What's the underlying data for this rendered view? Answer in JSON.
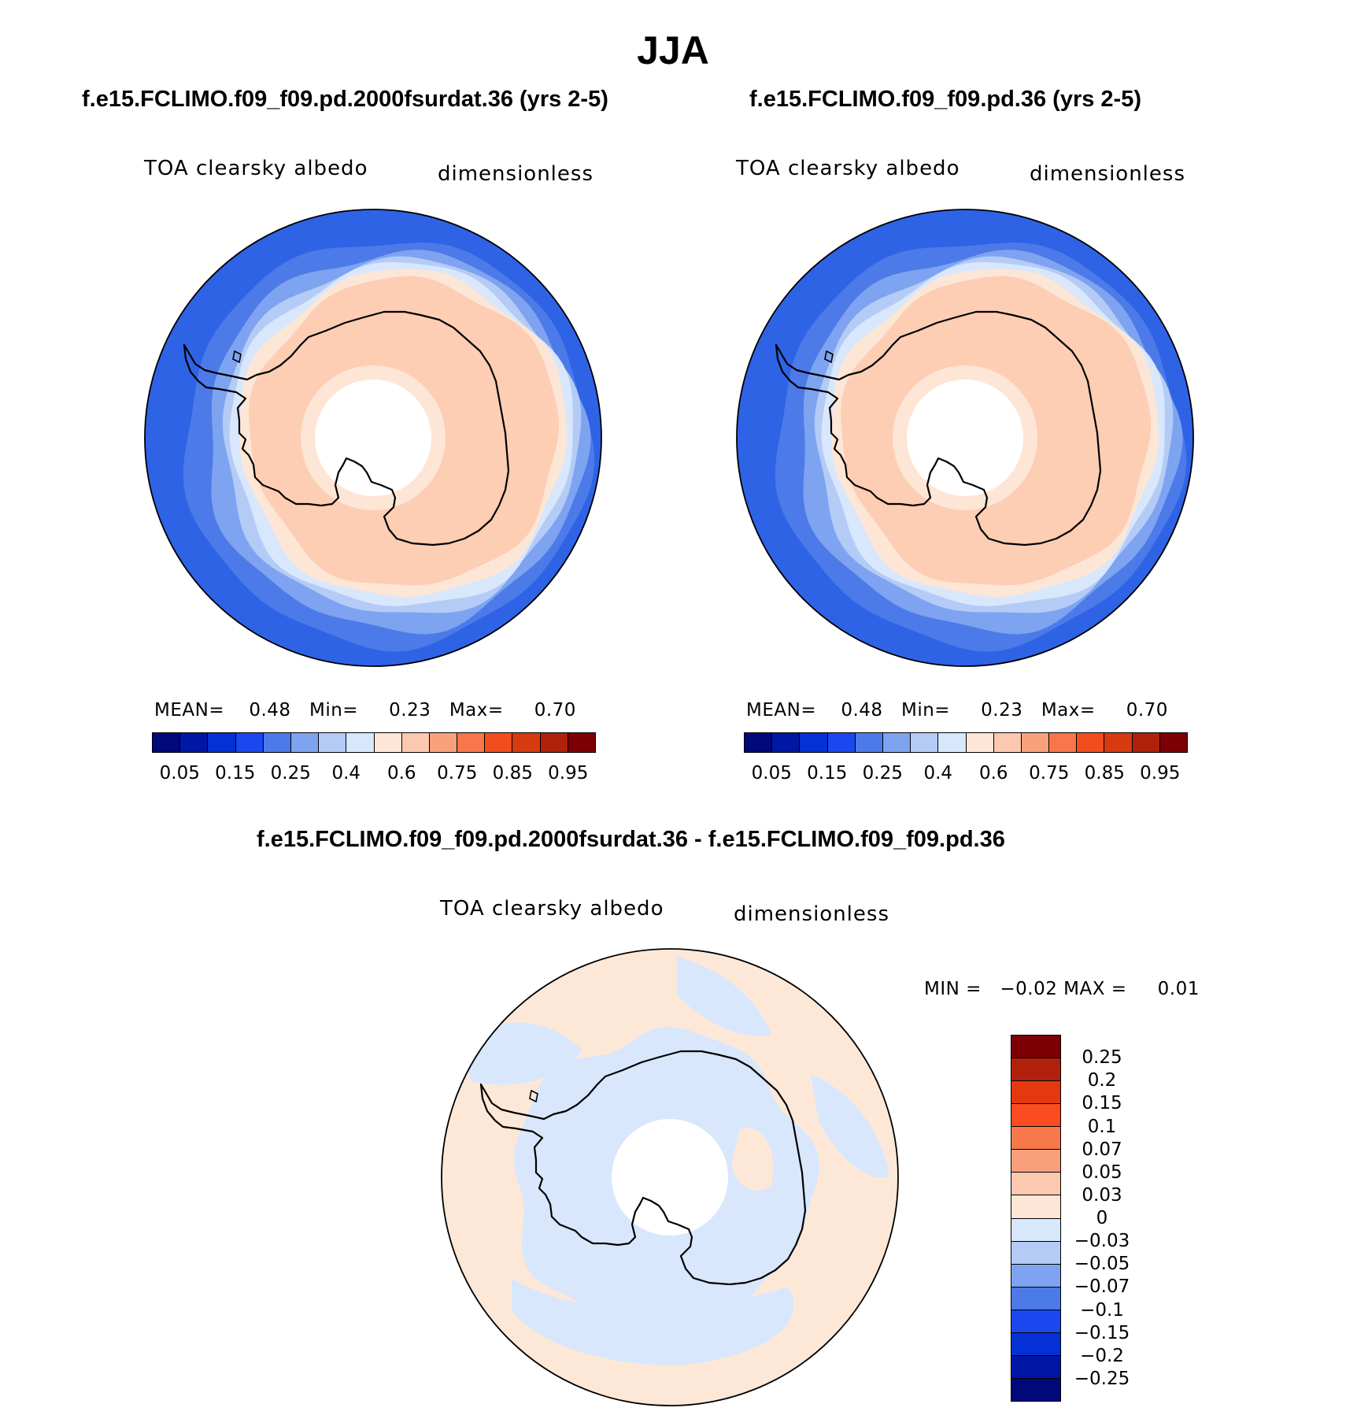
{
  "main_title": "JJA",
  "panels": [
    {
      "title": "f.e15.FCLIMO.f09_f09.pd.2000fsurdat.36 (yrs 2-5)",
      "variable": "TOA clearsky albedo",
      "units": "dimensionless",
      "stats": {
        "mean_label": "MEAN=",
        "mean": "0.48",
        "min_label": "Min=",
        "min": "0.23",
        "max_label": "Max=",
        "max": "0.70"
      }
    },
    {
      "title": "f.e15.FCLIMO.f09_f09.pd.36 (yrs 2-5)",
      "variable": "TOA clearsky albedo",
      "units": "dimensionless",
      "stats": {
        "mean_label": "MEAN=",
        "mean": "0.48",
        "min_label": "Min=",
        "min": "0.23",
        "max_label": "Max=",
        "max": "0.70"
      }
    }
  ],
  "diff_panel": {
    "title": "f.e15.FCLIMO.f09_f09.pd.2000fsurdat.36 - f.e15.FCLIMO.f09_f09.pd.36",
    "variable": "TOA clearsky albedo",
    "units": "dimensionless",
    "stats": {
      "min_label": "MIN =",
      "min": "−0.02",
      "max_label": "MAX =",
      "max": "0.01"
    }
  },
  "abs_colorbar": {
    "colors": [
      "#00087a",
      "#0017a6",
      "#0530d6",
      "#1a48ee",
      "#4c7ae8",
      "#7ea3f0",
      "#b4cbf6",
      "#d8e7fc",
      "#fde6d6",
      "#fcc8b0",
      "#f9a07c",
      "#f8764a",
      "#f24d1d",
      "#d83a10",
      "#b0200a",
      "#7c0005"
    ],
    "tick_labels": [
      "0.05",
      "0.15",
      "0.25",
      "0.4",
      "0.6",
      "0.75",
      "0.85",
      "0.95"
    ]
  },
  "diff_colorbar": {
    "colors": [
      "#7c0005",
      "#b0200a",
      "#e43810",
      "#fb4c20",
      "#f9784a",
      "#f8a07c",
      "#fcc8b0",
      "#fde6d6",
      "#d8e7fc",
      "#b4cbf6",
      "#7ea3f0",
      "#4c7ae8",
      "#1a48ee",
      "#0530d6",
      "#0017a6",
      "#00087a"
    ],
    "tick_labels": [
      "0.25",
      "0.2",
      "0.15",
      "0.1",
      "0.07",
      "0.05",
      "0.03",
      "0",
      "−0.03",
      "−0.05",
      "−0.07",
      "−0.1",
      "−0.15",
      "−0.2",
      "−0.25"
    ]
  },
  "map_colors": {
    "ring1": "#2e63e6",
    "ring2": "#4c7ae8",
    "ring3": "#7ea3f0",
    "ring4": "#b4cbf6",
    "ring5": "#d8e7fc",
    "ring6": "#fde6d6",
    "land": "#fdcdb4",
    "pole_ring": "#fde6d6",
    "diff_ocean": "#fde8d8",
    "diff_land": "#d8e7fc"
  }
}
